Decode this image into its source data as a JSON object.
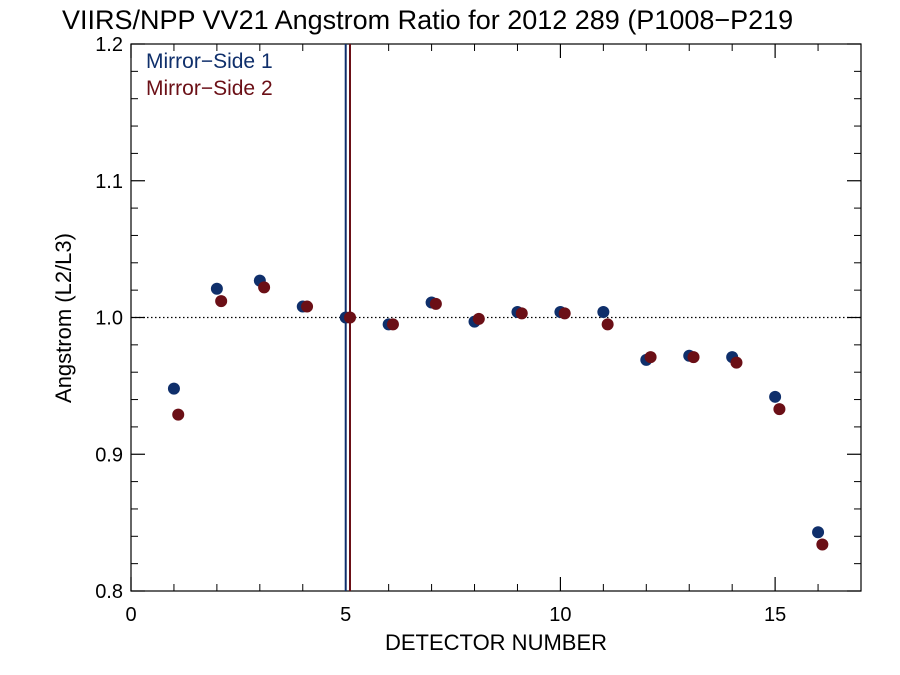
{
  "chart_data": {
    "type": "scatter",
    "title": "VIIRS/NPP VV21 Angstrom Ratio for 2012 289 (P1008−P219",
    "xlabel": "DETECTOR NUMBER",
    "ylabel": "Angstrom (L2/L3)",
    "xlim": [
      0,
      17
    ],
    "ylim": [
      0.8,
      1.2
    ],
    "xticks": [
      0,
      5,
      10,
      15
    ],
    "xtick_labels": [
      "0",
      "5",
      "10",
      "15"
    ],
    "yticks": [
      0.8,
      0.9,
      1.0,
      1.1,
      1.2
    ],
    "ytick_labels": [
      "0.8",
      "0.9",
      "1.0",
      "1.1",
      "1.2"
    ],
    "reference_line": {
      "y": 1.0,
      "style": "dotted"
    },
    "vertical_lines": [
      {
        "series": "Mirror−Side 1",
        "x": 5.0
      },
      {
        "series": "Mirror−Side 2",
        "x": 5.1
      }
    ],
    "legend_placement": "top-left",
    "series": [
      {
        "name": "Mirror−Side 1",
        "color": "#0f2f6b",
        "x": [
          1,
          2,
          3,
          4,
          5,
          6,
          7,
          8,
          9,
          10,
          11,
          12,
          13,
          14,
          15,
          16
        ],
        "y": [
          0.948,
          1.021,
          1.027,
          1.008,
          1.0,
          0.995,
          1.011,
          0.997,
          1.004,
          1.004,
          1.004,
          0.969,
          0.972,
          0.971,
          0.942,
          0.843
        ]
      },
      {
        "name": "Mirror−Side 2",
        "color": "#6b0f16",
        "x": [
          1.1,
          2.1,
          3.1,
          4.1,
          5.1,
          6.1,
          7.1,
          8.1,
          9.1,
          10.1,
          11.1,
          12.1,
          13.1,
          14.1,
          15.1,
          16.1
        ],
        "y": [
          0.929,
          1.012,
          1.022,
          1.008,
          1.0,
          0.995,
          1.01,
          0.999,
          1.003,
          1.003,
          0.995,
          0.971,
          0.971,
          0.967,
          0.933,
          0.834
        ]
      }
    ]
  }
}
